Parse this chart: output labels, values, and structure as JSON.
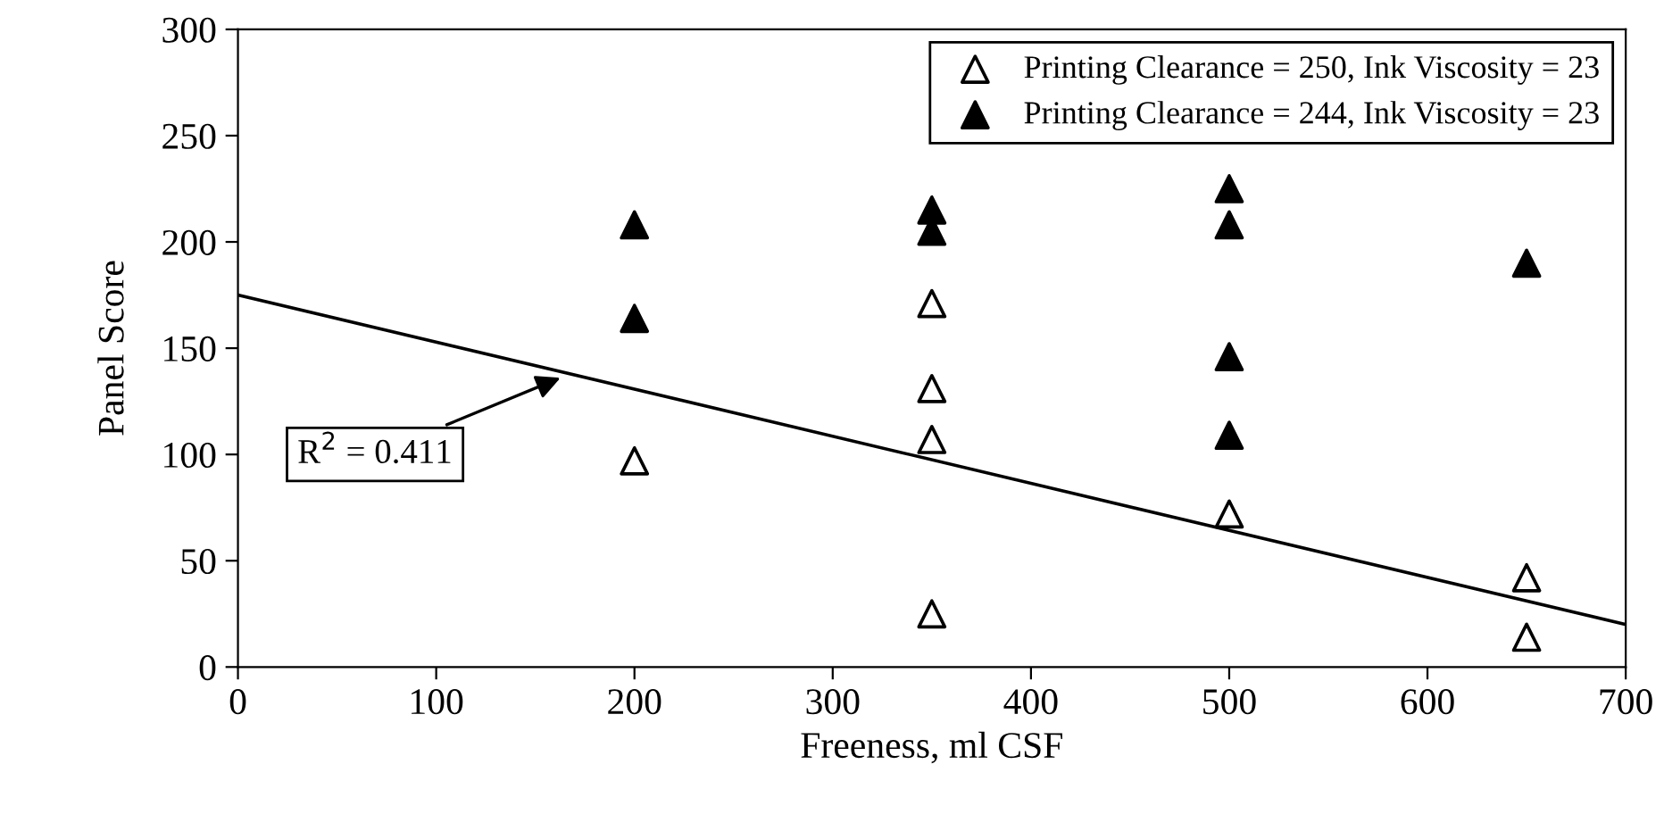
{
  "chart_data": {
    "type": "scatter",
    "xlabel": "Freeness, ml CSF",
    "ylabel": "Panel Score",
    "xlim": [
      0,
      700
    ],
    "xticks": [
      0,
      100,
      200,
      300,
      400,
      500,
      600,
      700
    ],
    "ylim": [
      0,
      300
    ],
    "yticks": [
      0,
      50,
      100,
      150,
      200,
      250,
      300
    ],
    "marker": "triangle",
    "grid": false,
    "legend": "top right",
    "series": [
      {
        "name": "Printing Clearance = 250, Ink Viscosity = 23",
        "color": "#ffffff",
        "x": [
          200,
          350,
          350,
          350,
          350,
          500,
          650,
          650
        ],
        "values": [
          97,
          171,
          131,
          107,
          25,
          72,
          42,
          14
        ]
      },
      {
        "name": "Printing Clearance = 244, Ink Viscosity = 23",
        "color": "#000000",
        "x": [
          200,
          200,
          350,
          350,
          500,
          500,
          500,
          500,
          650
        ],
        "values": [
          208,
          164,
          215,
          205,
          225,
          208,
          146,
          109,
          190
        ]
      },
      {
        "type": "line",
        "marker": "none",
        "color": "#000000",
        "x": [
          0,
          700
        ],
        "values": [
          175,
          20
        ]
      }
    ],
    "annotations": [
      {
        "text": "R$^{2}$ = 0.411",
        "x": 165,
        "y": 137
      }
    ]
  }
}
